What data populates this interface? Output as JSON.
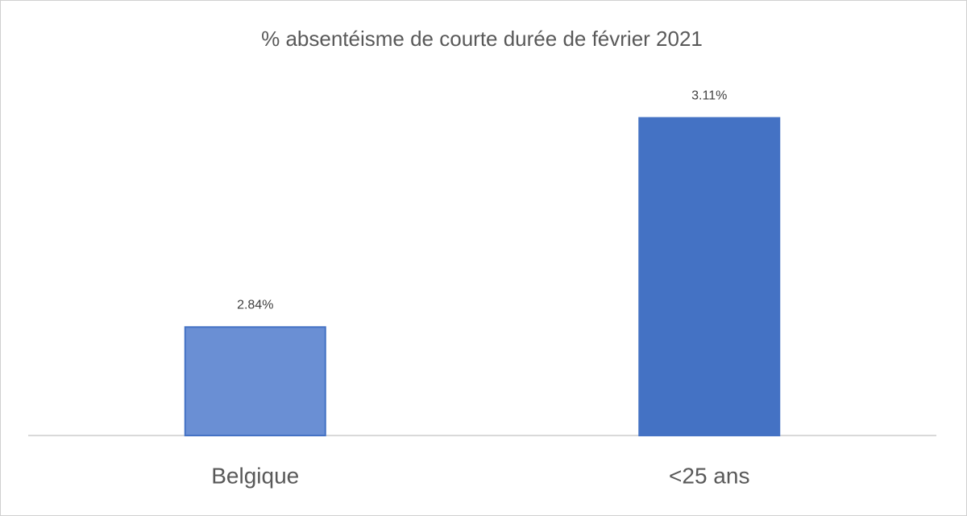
{
  "chart_data": {
    "type": "bar",
    "title": "% absentéisme de courte durée de février 2021",
    "categories": [
      "Belgique",
      "<25 ans"
    ],
    "values": [
      2.84,
      3.11
    ],
    "value_labels": [
      "2.84%",
      "3.11%"
    ],
    "colors": [
      "#6a8fd4",
      "#4472c4"
    ],
    "ylim": [
      2.7,
      3.15
    ]
  }
}
